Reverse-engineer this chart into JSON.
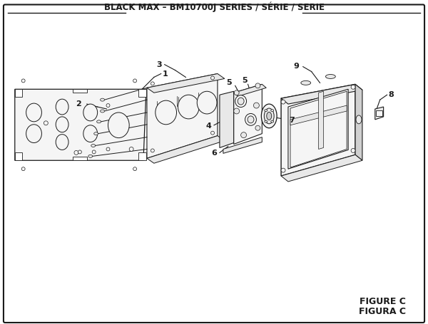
{
  "title": "BLACK MAX – BM10700J SERIES / SÉRIE / SERIE",
  "figure_label": "FIGURE C",
  "figura_label": "FIGURA C",
  "bg_color": "#ffffff",
  "lc": "#1a1a1a",
  "fill_light": "#f5f5f5",
  "fill_mid": "#e8e8e8",
  "fill_dark": "#d0d0d0",
  "title_fontsize": 8.5,
  "label_fontsize": 8,
  "figure_fontsize": 9
}
